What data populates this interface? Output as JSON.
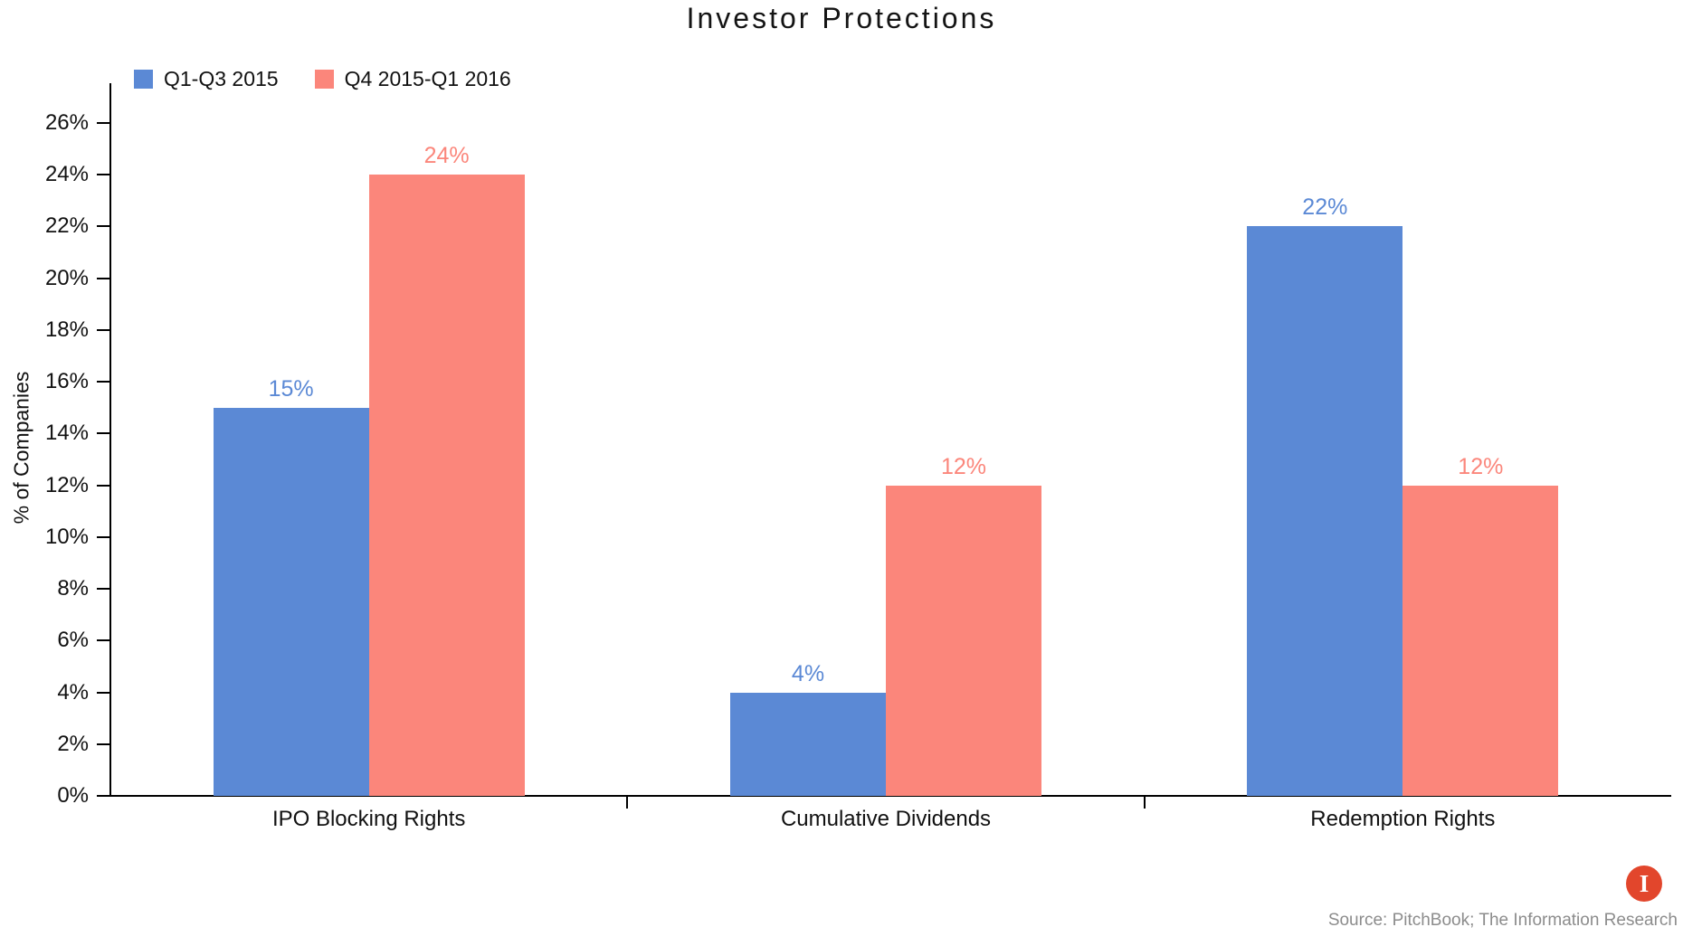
{
  "chart_data": {
    "type": "bar",
    "title": "Investor Protections",
    "ylabel": "% of Companies",
    "xlabel": "",
    "categories": [
      "IPO Blocking Rights",
      "Cumulative Dividends",
      "Redemption Rights"
    ],
    "series": [
      {
        "name": "Q1-Q3 2015",
        "color": "#5b89d5",
        "values": [
          15,
          4,
          22
        ]
      },
      {
        "name": "Q4 2015-Q1 2016",
        "color": "#fb867b",
        "values": [
          24,
          12,
          12
        ]
      }
    ],
    "ylim": [
      0,
      26
    ],
    "ytick_step": 2,
    "ytick_labels": [
      "0%",
      "2%",
      "4%",
      "6%",
      "8%",
      "10%",
      "12%",
      "14%",
      "16%",
      "18%",
      "20%",
      "22%",
      "24%",
      "26%"
    ],
    "bar_label_suffix": "%",
    "grid": false,
    "legend_position": "top-left"
  },
  "source": {
    "text": "Source: PitchBook; The Information Research"
  },
  "logo": {
    "letter": "I",
    "bg_color": "#e2462c"
  }
}
